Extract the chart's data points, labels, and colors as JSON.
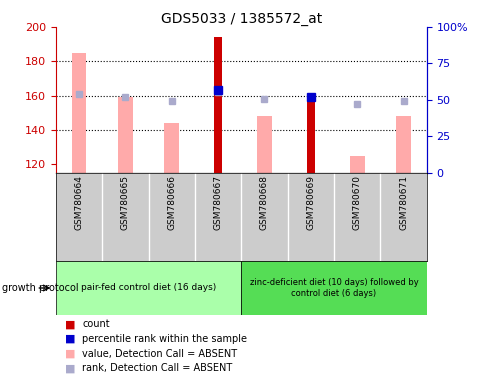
{
  "title": "GDS5033 / 1385572_at",
  "samples": [
    "GSM780664",
    "GSM780665",
    "GSM780666",
    "GSM780667",
    "GSM780668",
    "GSM780669",
    "GSM780670",
    "GSM780671"
  ],
  "ylim_left": [
    115,
    200
  ],
  "ylim_right": [
    0,
    100
  ],
  "yticks_left": [
    120,
    140,
    160,
    180,
    200
  ],
  "ytick_labels_left": [
    "120",
    "140",
    "160",
    "180",
    "200"
  ],
  "yticks_right_vals": [
    0,
    25,
    50,
    75,
    100
  ],
  "ytick_labels_right": [
    "0",
    "25",
    "50",
    "75",
    "100%"
  ],
  "count_values": [
    null,
    null,
    null,
    194,
    null,
    159,
    null,
    null
  ],
  "count_color": "#cc0000",
  "value_absent_values": [
    185,
    159,
    144,
    null,
    148,
    null,
    125,
    148
  ],
  "value_absent_color": "#ffaaaa",
  "rank_sample_values": [
    null,
    null,
    null,
    163,
    null,
    159,
    null,
    null
  ],
  "rank_sample_color": "#0000cc",
  "rank_absent_values": [
    161,
    159,
    157,
    162,
    158,
    null,
    155,
    157
  ],
  "rank_absent_color": "#aaaacc",
  "group1_label": "pair-fed control diet (16 days)",
  "group2_label": "zinc-deficient diet (10 days) followed by\ncontrol diet (6 days)",
  "group1_color": "#aaffaa",
  "group2_color": "#55dd55",
  "sample_box_color": "#cccccc",
  "left_tick_color": "#cc0000",
  "right_tick_color": "#0000cc",
  "grid_linestyle": "dotted",
  "count_bar_width": 0.18,
  "value_bar_width": 0.32,
  "legend_items": [
    {
      "color": "#cc0000",
      "label": "count"
    },
    {
      "color": "#0000cc",
      "label": "percentile rank within the sample"
    },
    {
      "color": "#ffaaaa",
      "label": "value, Detection Call = ABSENT"
    },
    {
      "color": "#aaaacc",
      "label": "rank, Detection Call = ABSENT"
    }
  ]
}
